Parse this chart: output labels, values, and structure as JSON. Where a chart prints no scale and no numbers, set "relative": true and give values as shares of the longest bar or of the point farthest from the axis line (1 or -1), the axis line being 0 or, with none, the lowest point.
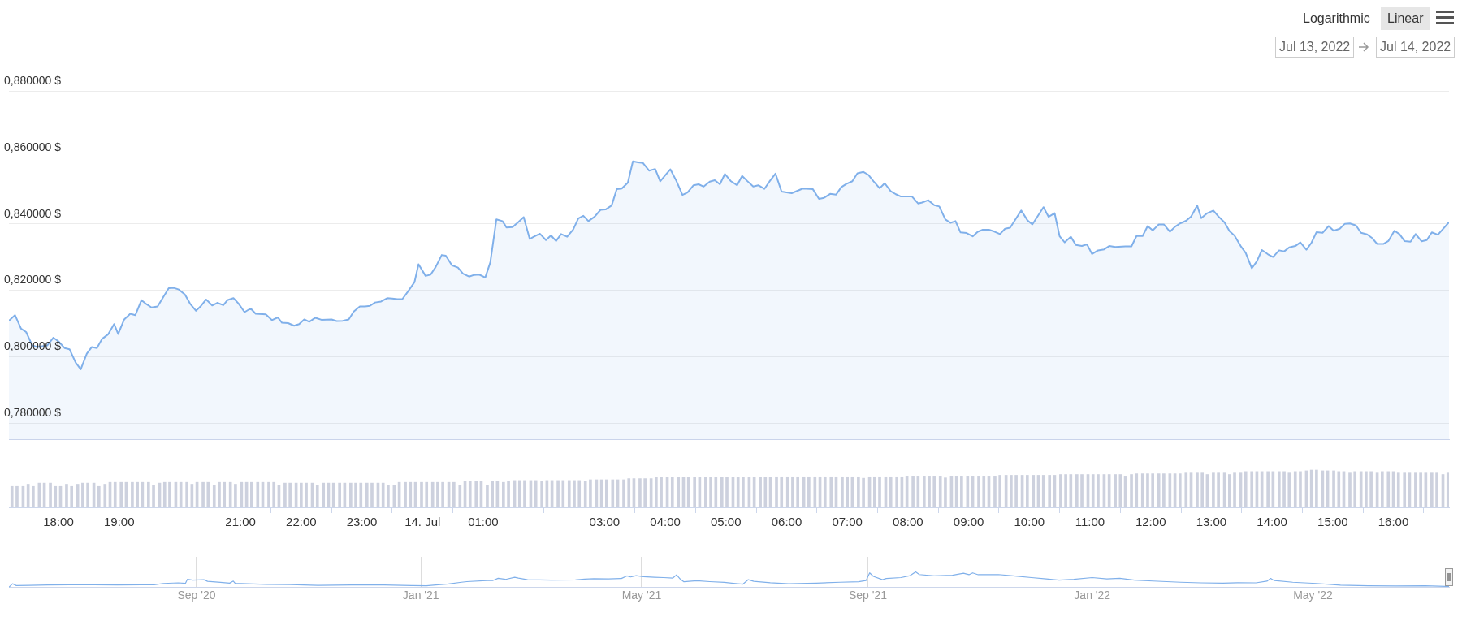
{
  "chart_data": [
    {
      "type": "area",
      "color": "#80b0ea",
      "grid": "y",
      "tick_labels": "y",
      "xlim": [
        "2022-07-13T17:11",
        "2022-07-14T16:55"
      ],
      "ylim": [
        0.775,
        0.88
      ],
      "yticks": [
        {
          "value": 0.78,
          "label": "0,780000 $"
        },
        {
          "value": 0.8,
          "label": "0,800000 $"
        },
        {
          "value": 0.82,
          "label": "0,820000 $"
        },
        {
          "value": 0.84,
          "label": "0,840000 $"
        },
        {
          "value": 0.86,
          "label": "0,860000 $"
        },
        {
          "value": 0.88,
          "label": "0,880000 $"
        }
      ],
      "annotations": [
        "Logarithmic",
        "Linear",
        "Jul 13, 2022",
        "Jul 14, 2022"
      ],
      "x": [
        "2022-07-13T17:11",
        "2022-07-13T17:17",
        "2022-07-13T17:23",
        "2022-07-13T17:28",
        "2022-07-13T17:34",
        "2022-07-13T17:39",
        "2022-07-13T17:49",
        "2022-07-13T17:55",
        "2022-07-13T18:00",
        "2022-07-13T18:06",
        "2022-07-13T18:11",
        "2022-07-13T18:17",
        "2022-07-13T18:22",
        "2022-07-13T18:28",
        "2022-07-13T18:33",
        "2022-07-13T18:38",
        "2022-07-13T18:43",
        "2022-07-13T18:49",
        "2022-07-13T18:55",
        "2022-07-13T18:59",
        "2022-07-13T19:05",
        "2022-07-13T19:11",
        "2022-07-13T19:16",
        "2022-07-13T19:22",
        "2022-07-13T19:27",
        "2022-07-13T19:32",
        "2022-07-13T19:38",
        "2022-07-13T19:43",
        "2022-07-13T19:49",
        "2022-07-13T19:54",
        "2022-07-13T19:59",
        "2022-07-13T20:05",
        "2022-07-13T20:10",
        "2022-07-13T20:16",
        "2022-07-13T20:21",
        "2022-07-13T20:26",
        "2022-07-13T20:32",
        "2022-07-13T20:37",
        "2022-07-13T20:43",
        "2022-07-13T20:47",
        "2022-07-13T20:53",
        "2022-07-13T20:58",
        "2022-07-13T21:04",
        "2022-07-13T21:10",
        "2022-07-13T21:15",
        "2022-07-13T21:25",
        "2022-07-13T21:31",
        "2022-07-13T21:37",
        "2022-07-13T21:41",
        "2022-07-13T21:47",
        "2022-07-13T21:53",
        "2022-07-13T21:58",
        "2022-07-13T22:03",
        "2022-07-13T22:08",
        "2022-07-13T22:14",
        "2022-07-13T22:20",
        "2022-07-13T22:30",
        "2022-07-13T22:35",
        "2022-07-13T22:41",
        "2022-07-13T22:47",
        "2022-07-13T22:52",
        "2022-07-13T22:58",
        "2022-07-13T23:03",
        "2022-07-13T23:08",
        "2022-07-13T23:13",
        "2022-07-13T23:19",
        "2022-07-13T23:25",
        "2022-07-13T23:30",
        "2022-07-13T23:35",
        "2022-07-13T23:40",
        "2022-07-13T23:46",
        "2022-07-13T23:52",
        "2022-07-13T23:56",
        "2022-07-14T00:03",
        "2022-07-14T00:08",
        "2022-07-14T00:13",
        "2022-07-14T00:19",
        "2022-07-14T00:23",
        "2022-07-14T00:29",
        "2022-07-14T00:35",
        "2022-07-14T00:40",
        "2022-07-14T00:46",
        "2022-07-14T00:51",
        "2022-07-14T00:56",
        "2022-07-14T01:02",
        "2022-07-14T01:07",
        "2022-07-14T01:13",
        "2022-07-14T01:19",
        "2022-07-14T01:23",
        "2022-07-14T01:29",
        "2022-07-14T01:35",
        "2022-07-14T01:40",
        "2022-07-14T01:46",
        "2022-07-14T01:50",
        "2022-07-14T01:56",
        "2022-07-14T02:02",
        "2022-07-14T02:07",
        "2022-07-14T02:12",
        "2022-07-14T02:17",
        "2022-07-14T02:23",
        "2022-07-14T02:29",
        "2022-07-14T02:34",
        "2022-07-14T02:39",
        "2022-07-14T02:44",
        "2022-07-14T02:50",
        "2022-07-14T02:56",
        "2022-07-14T03:01",
        "2022-07-14T03:07",
        "2022-07-14T03:12",
        "2022-07-14T03:17",
        "2022-07-14T03:23",
        "2022-07-14T03:28",
        "2022-07-14T03:33",
        "2022-07-14T03:38",
        "2022-07-14T03:44",
        "2022-07-14T03:50",
        "2022-07-14T03:55",
        "2022-07-14T04:00",
        "2022-07-14T04:05",
        "2022-07-14T04:11",
        "2022-07-14T04:17",
        "2022-07-14T04:22",
        "2022-07-14T04:28",
        "2022-07-14T04:33",
        "2022-07-14T04:38",
        "2022-07-14T04:44",
        "2022-07-14T04:49",
        "2022-07-14T04:54",
        "2022-07-14T04:59",
        "2022-07-14T05:05",
        "2022-07-14T05:11",
        "2022-07-14T05:16",
        "2022-07-14T05:21",
        "2022-07-14T05:27",
        "2022-07-14T05:32",
        "2022-07-14T05:38",
        "2022-07-14T05:43",
        "2022-07-14T05:49",
        "2022-07-14T05:55",
        "2022-07-14T06:05",
        "2022-07-14T06:16",
        "2022-07-14T06:26",
        "2022-07-14T06:32",
        "2022-07-14T06:37",
        "2022-07-14T06:43",
        "2022-07-14T06:49",
        "2022-07-14T06:54",
        "2022-07-14T06:59",
        "2022-07-14T07:05",
        "2022-07-14T07:10",
        "2022-07-14T07:16",
        "2022-07-14T07:21",
        "2022-07-14T07:26",
        "2022-07-14T07:32",
        "2022-07-14T07:37",
        "2022-07-14T07:43",
        "2022-07-14T07:48",
        "2022-07-14T07:53",
        "2022-07-14T08:04",
        "2022-07-14T08:10",
        "2022-07-14T08:14",
        "2022-07-14T08:20",
        "2022-07-14T08:26",
        "2022-07-14T08:31",
        "2022-07-14T08:37",
        "2022-07-14T08:42",
        "2022-07-14T08:47",
        "2022-07-14T08:52",
        "2022-07-14T08:58",
        "2022-07-14T09:04",
        "2022-07-14T09:09",
        "2022-07-14T09:14",
        "2022-07-14T09:20",
        "2022-07-14T09:25",
        "2022-07-14T09:31",
        "2022-07-14T09:36",
        "2022-07-14T09:41",
        "2022-07-14T09:52",
        "2022-07-14T09:58",
        "2022-07-14T10:03",
        "2022-07-14T10:14",
        "2022-07-14T10:19",
        "2022-07-14T10:25",
        "2022-07-14T10:30",
        "2022-07-14T10:35",
        "2022-07-14T10:41",
        "2022-07-14T10:46",
        "2022-07-14T10:52",
        "2022-07-14T10:57",
        "2022-07-14T11:02",
        "2022-07-14T11:08",
        "2022-07-14T11:14",
        "2022-07-14T11:19",
        "2022-07-14T11:25",
        "2022-07-14T11:35",
        "2022-07-14T11:41",
        "2022-07-14T11:46",
        "2022-07-14T11:52",
        "2022-07-14T11:57",
        "2022-07-14T12:02",
        "2022-07-14T12:08",
        "2022-07-14T12:13",
        "2022-07-14T12:19",
        "2022-07-14T12:24",
        "2022-07-14T12:29",
        "2022-07-14T12:35",
        "2022-07-14T12:40",
        "2022-07-14T12:46",
        "2022-07-14T12:50",
        "2022-07-14T12:56",
        "2022-07-14T13:02",
        "2022-07-14T13:07",
        "2022-07-14T13:13",
        "2022-07-14T13:18",
        "2022-07-14T13:23",
        "2022-07-14T13:29",
        "2022-07-14T13:34",
        "2022-07-14T13:40",
        "2022-07-14T13:45",
        "2022-07-14T13:50",
        "2022-07-14T13:56",
        "2022-07-14T14:01",
        "2022-07-14T14:07",
        "2022-07-14T14:12",
        "2022-07-14T14:17",
        "2022-07-14T14:23",
        "2022-07-14T14:28",
        "2022-07-14T14:34",
        "2022-07-14T14:39",
        "2022-07-14T14:44",
        "2022-07-14T14:50",
        "2022-07-14T14:56",
        "2022-07-14T15:01",
        "2022-07-14T15:07",
        "2022-07-14T15:12",
        "2022-07-14T15:17",
        "2022-07-14T15:23",
        "2022-07-14T15:28",
        "2022-07-14T15:34",
        "2022-07-14T15:39",
        "2022-07-14T15:44",
        "2022-07-14T15:50",
        "2022-07-14T15:55",
        "2022-07-14T16:01",
        "2022-07-14T16:06",
        "2022-07-14T16:11",
        "2022-07-14T16:17",
        "2022-07-14T16:22",
        "2022-07-14T16:28",
        "2022-07-14T16:33",
        "2022-07-14T16:38",
        "2022-07-14T16:44",
        "2022-07-14T16:49",
        "2022-07-14T16:55"
      ],
      "values": [
        0.8108,
        0.8125,
        0.8084,
        0.8074,
        0.8034,
        0.8029,
        0.8034,
        0.8057,
        0.8046,
        0.8026,
        0.8022,
        0.7982,
        0.7962,
        0.8009,
        0.8029,
        0.8026,
        0.8053,
        0.8067,
        0.8098,
        0.8068,
        0.8112,
        0.8129,
        0.8125,
        0.817,
        0.8158,
        0.8148,
        0.8151,
        0.8176,
        0.8206,
        0.8207,
        0.8202,
        0.8187,
        0.816,
        0.8138,
        0.8153,
        0.8172,
        0.8154,
        0.8162,
        0.8155,
        0.817,
        0.8176,
        0.816,
        0.8134,
        0.8145,
        0.8129,
        0.8127,
        0.811,
        0.8118,
        0.8102,
        0.8101,
        0.8093,
        0.8098,
        0.8112,
        0.8105,
        0.8117,
        0.8111,
        0.8112,
        0.8107,
        0.8108,
        0.8112,
        0.8136,
        0.8151,
        0.8151,
        0.8153,
        0.8163,
        0.8166,
        0.8176,
        0.8175,
        0.8173,
        0.8173,
        0.8198,
        0.8224,
        0.8278,
        0.8243,
        0.8247,
        0.827,
        0.8306,
        0.8304,
        0.8275,
        0.8268,
        0.825,
        0.8241,
        0.8246,
        0.8247,
        0.8238,
        0.8284,
        0.8413,
        0.8408,
        0.8389,
        0.839,
        0.8406,
        0.842,
        0.8354,
        0.8361,
        0.837,
        0.8351,
        0.8365,
        0.8348,
        0.8369,
        0.8361,
        0.8383,
        0.8416,
        0.8424,
        0.8408,
        0.8421,
        0.8442,
        0.8443,
        0.8455,
        0.8504,
        0.8506,
        0.8524,
        0.8588,
        0.8585,
        0.8583,
        0.856,
        0.8565,
        0.8528,
        0.8546,
        0.8564,
        0.8529,
        0.8487,
        0.8494,
        0.8516,
        0.8519,
        0.8512,
        0.8527,
        0.8531,
        0.8519,
        0.855,
        0.8528,
        0.8516,
        0.8544,
        0.8529,
        0.8512,
        0.8516,
        0.8505,
        0.8527,
        0.8551,
        0.8497,
        0.8492,
        0.8506,
        0.8504,
        0.8475,
        0.8478,
        0.849,
        0.8488,
        0.851,
        0.852,
        0.8528,
        0.8552,
        0.8556,
        0.8547,
        0.8528,
        0.8507,
        0.8522,
        0.8498,
        0.8489,
        0.8482,
        0.8482,
        0.8461,
        0.8464,
        0.8471,
        0.8456,
        0.8452,
        0.8413,
        0.8403,
        0.8408,
        0.8374,
        0.8372,
        0.8362,
        0.8376,
        0.8382,
        0.8382,
        0.8377,
        0.8369,
        0.8385,
        0.8388,
        0.844,
        0.8411,
        0.8398,
        0.845,
        0.8421,
        0.8432,
        0.8362,
        0.8344,
        0.8361,
        0.8336,
        0.8333,
        0.8338,
        0.8309,
        0.832,
        0.8323,
        0.8333,
        0.833,
        0.8332,
        0.8332,
        0.8363,
        0.8363,
        0.8393,
        0.838,
        0.8398,
        0.8398,
        0.8376,
        0.8391,
        0.8401,
        0.8409,
        0.8422,
        0.8455,
        0.8417,
        0.8432,
        0.844,
        0.8422,
        0.8404,
        0.8378,
        0.8364,
        0.8333,
        0.8312,
        0.8266,
        0.8287,
        0.8321,
        0.8308,
        0.83,
        0.832,
        0.8317,
        0.8329,
        0.8333,
        0.8344,
        0.8322,
        0.8343,
        0.8375,
        0.8373,
        0.8393,
        0.8379,
        0.8385,
        0.84,
        0.8401,
        0.8395,
        0.8373,
        0.8368,
        0.8357,
        0.8339,
        0.8339,
        0.8348,
        0.8379,
        0.8369,
        0.8348,
        0.8346,
        0.8369,
        0.8347,
        0.8351,
        0.8374,
        0.8367,
        0.8384,
        0.8405
      ]
    },
    {
      "type": "bar",
      "color": "#cdd1de",
      "relative": true,
      "tick_labels": "x",
      "xlim": [
        "2022-07-13T17:11",
        "2022-07-14T16:55"
      ],
      "xticks": [
        {
          "value": "2022-07-13T18:00",
          "label": "18:00"
        },
        {
          "value": "2022-07-13T19:00",
          "label": "19:00"
        },
        {
          "value": "2022-07-13T21:00",
          "label": "21:00"
        },
        {
          "value": "2022-07-13T22:00",
          "label": "22:00"
        },
        {
          "value": "2022-07-13T23:00",
          "label": "23:00"
        },
        {
          "value": "2022-07-14T00:00",
          "label": "14. Jul"
        },
        {
          "value": "2022-07-14T01:00",
          "label": "01:00"
        },
        {
          "value": "2022-07-14T03:00",
          "label": "03:00"
        },
        {
          "value": "2022-07-14T04:00",
          "label": "04:00"
        },
        {
          "value": "2022-07-14T05:00",
          "label": "05:00"
        },
        {
          "value": "2022-07-14T06:00",
          "label": "06:00"
        },
        {
          "value": "2022-07-14T07:00",
          "label": "07:00"
        },
        {
          "value": "2022-07-14T08:00",
          "label": "08:00"
        },
        {
          "value": "2022-07-14T09:00",
          "label": "09:00"
        },
        {
          "value": "2022-07-14T10:00",
          "label": "10:00"
        },
        {
          "value": "2022-07-14T11:00",
          "label": "11:00"
        },
        {
          "value": "2022-07-14T12:00",
          "label": "12:00"
        },
        {
          "value": "2022-07-14T13:00",
          "label": "13:00"
        },
        {
          "value": "2022-07-14T14:00",
          "label": "14:00"
        },
        {
          "value": "2022-07-14T15:00",
          "label": "15:00"
        },
        {
          "value": "2022-07-14T16:00",
          "label": "16:00"
        }
      ],
      "x": [
        "2022-07-13T17:14",
        "2022-07-13T17:19",
        "2022-07-13T17:25",
        "2022-07-13T17:30",
        "2022-07-13T17:35",
        "2022-07-13T17:41",
        "2022-07-13T17:46",
        "2022-07-13T17:52",
        "2022-07-13T17:57",
        "2022-07-13T18:02",
        "2022-07-13T18:08",
        "2022-07-13T18:13",
        "2022-07-13T18:19",
        "2022-07-13T18:24",
        "2022-07-13T18:29",
        "2022-07-13T18:35",
        "2022-07-13T18:40",
        "2022-07-13T18:46",
        "2022-07-13T18:51",
        "2022-07-13T18:56",
        "2022-07-13T19:02",
        "2022-07-13T19:07",
        "2022-07-13T19:13",
        "2022-07-13T19:18",
        "2022-07-13T19:23",
        "2022-07-13T19:29",
        "2022-07-13T19:34",
        "2022-07-13T19:40",
        "2022-07-13T19:45",
        "2022-07-13T19:50",
        "2022-07-13T19:56",
        "2022-07-13T20:01",
        "2022-07-13T20:07",
        "2022-07-13T20:12",
        "2022-07-13T20:17",
        "2022-07-13T20:23",
        "2022-07-13T20:28",
        "2022-07-13T20:34",
        "2022-07-13T20:39",
        "2022-07-13T20:44",
        "2022-07-13T20:50",
        "2022-07-13T20:55",
        "2022-07-13T21:01",
        "2022-07-13T21:06",
        "2022-07-13T21:11",
        "2022-07-13T21:17",
        "2022-07-13T21:22",
        "2022-07-13T21:28",
        "2022-07-13T21:33",
        "2022-07-13T21:38",
        "2022-07-13T21:44",
        "2022-07-13T21:49",
        "2022-07-13T21:55",
        "2022-07-13T22:00",
        "2022-07-13T22:05",
        "2022-07-13T22:11",
        "2022-07-13T22:16",
        "2022-07-13T22:22",
        "2022-07-13T22:27",
        "2022-07-13T22:32",
        "2022-07-13T22:38",
        "2022-07-13T22:43",
        "2022-07-13T22:49",
        "2022-07-13T22:54",
        "2022-07-13T22:59",
        "2022-07-13T23:05",
        "2022-07-13T23:10",
        "2022-07-13T23:16",
        "2022-07-13T23:21",
        "2022-07-13T23:26",
        "2022-07-13T23:32",
        "2022-07-13T23:37",
        "2022-07-13T23:43",
        "2022-07-13T23:48",
        "2022-07-13T23:53",
        "2022-07-13T23:59",
        "2022-07-14T00:04",
        "2022-07-14T00:10",
        "2022-07-14T00:15",
        "2022-07-14T00:20",
        "2022-07-14T00:26",
        "2022-07-14T00:31",
        "2022-07-14T00:37",
        "2022-07-14T00:42",
        "2022-07-14T00:47",
        "2022-07-14T00:53",
        "2022-07-14T00:58",
        "2022-07-14T01:04",
        "2022-07-14T01:09",
        "2022-07-14T01:14",
        "2022-07-14T01:20",
        "2022-07-14T01:25",
        "2022-07-14T01:31",
        "2022-07-14T01:36",
        "2022-07-14T01:41",
        "2022-07-14T01:47",
        "2022-07-14T01:52",
        "2022-07-14T01:58",
        "2022-07-14T02:03",
        "2022-07-14T02:08",
        "2022-07-14T02:14",
        "2022-07-14T02:19",
        "2022-07-14T02:25",
        "2022-07-14T02:30",
        "2022-07-14T02:35",
        "2022-07-14T02:41",
        "2022-07-14T02:46",
        "2022-07-14T02:52",
        "2022-07-14T02:57",
        "2022-07-14T03:02",
        "2022-07-14T03:08",
        "2022-07-14T03:13",
        "2022-07-14T03:19",
        "2022-07-14T03:24",
        "2022-07-14T03:29",
        "2022-07-14T03:35",
        "2022-07-14T03:40",
        "2022-07-14T03:46",
        "2022-07-14T03:51",
        "2022-07-14T03:56",
        "2022-07-14T04:02",
        "2022-07-14T04:07",
        "2022-07-14T04:13",
        "2022-07-14T04:18",
        "2022-07-14T04:23",
        "2022-07-14T04:29",
        "2022-07-14T04:34",
        "2022-07-14T04:40",
        "2022-07-14T04:45",
        "2022-07-14T04:50",
        "2022-07-14T04:56",
        "2022-07-14T05:01",
        "2022-07-14T05:07",
        "2022-07-14T05:12",
        "2022-07-14T05:17",
        "2022-07-14T05:23",
        "2022-07-14T05:28",
        "2022-07-14T05:34",
        "2022-07-14T05:39",
        "2022-07-14T05:44",
        "2022-07-14T05:50",
        "2022-07-14T05:55",
        "2022-07-14T06:01",
        "2022-07-14T06:06",
        "2022-07-14T06:11",
        "2022-07-14T06:17",
        "2022-07-14T06:22",
        "2022-07-14T06:28",
        "2022-07-14T06:33",
        "2022-07-14T06:38",
        "2022-07-14T06:44",
        "2022-07-14T06:49",
        "2022-07-14T06:55",
        "2022-07-14T07:00",
        "2022-07-14T07:05",
        "2022-07-14T07:11",
        "2022-07-14T07:16",
        "2022-07-14T07:22",
        "2022-07-14T07:27",
        "2022-07-14T07:32",
        "2022-07-14T07:38",
        "2022-07-14T07:43",
        "2022-07-14T07:49",
        "2022-07-14T07:54",
        "2022-07-14T07:59",
        "2022-07-14T08:05",
        "2022-07-14T08:10",
        "2022-07-14T08:16",
        "2022-07-14T08:21",
        "2022-07-14T08:26",
        "2022-07-14T08:32",
        "2022-07-14T08:37",
        "2022-07-14T08:43",
        "2022-07-14T08:48",
        "2022-07-14T08:53",
        "2022-07-14T08:59",
        "2022-07-14T09:04",
        "2022-07-14T09:10",
        "2022-07-14T09:15",
        "2022-07-14T09:20",
        "2022-07-14T09:26",
        "2022-07-14T09:31",
        "2022-07-14T09:37",
        "2022-07-14T09:42",
        "2022-07-14T09:47",
        "2022-07-14T09:53",
        "2022-07-14T09:58",
        "2022-07-14T10:04",
        "2022-07-14T10:09",
        "2022-07-14T10:14",
        "2022-07-14T10:20",
        "2022-07-14T10:25",
        "2022-07-14T10:31",
        "2022-07-14T10:36",
        "2022-07-14T10:41",
        "2022-07-14T10:47",
        "2022-07-14T10:52",
        "2022-07-14T10:58",
        "2022-07-14T11:03",
        "2022-07-14T11:08",
        "2022-07-14T11:14",
        "2022-07-14T11:19",
        "2022-07-14T11:25",
        "2022-07-14T11:30",
        "2022-07-14T11:35",
        "2022-07-14T11:41",
        "2022-07-14T11:46",
        "2022-07-14T11:52",
        "2022-07-14T11:57",
        "2022-07-14T12:02",
        "2022-07-14T12:08",
        "2022-07-14T12:13",
        "2022-07-14T12:19",
        "2022-07-14T12:24",
        "2022-07-14T12:29",
        "2022-07-14T12:35",
        "2022-07-14T12:40",
        "2022-07-14T12:46",
        "2022-07-14T12:51",
        "2022-07-14T12:56",
        "2022-07-14T13:02",
        "2022-07-14T13:07",
        "2022-07-14T13:13",
        "2022-07-14T13:18",
        "2022-07-14T13:23",
        "2022-07-14T13:29",
        "2022-07-14T13:34",
        "2022-07-14T13:40",
        "2022-07-14T13:45",
        "2022-07-14T13:50",
        "2022-07-14T13:56",
        "2022-07-14T14:01",
        "2022-07-14T14:07",
        "2022-07-14T14:12",
        "2022-07-14T14:17",
        "2022-07-14T14:23",
        "2022-07-14T14:28",
        "2022-07-14T14:34",
        "2022-07-14T14:39",
        "2022-07-14T14:44",
        "2022-07-14T14:50",
        "2022-07-14T14:55",
        "2022-07-14T15:01",
        "2022-07-14T15:06",
        "2022-07-14T15:11",
        "2022-07-14T15:17",
        "2022-07-14T15:22",
        "2022-07-14T15:28",
        "2022-07-14T15:33",
        "2022-07-14T15:38",
        "2022-07-14T15:44",
        "2022-07-14T15:49",
        "2022-07-14T15:55",
        "2022-07-14T16:00",
        "2022-07-14T16:05",
        "2022-07-14T16:11",
        "2022-07-14T16:16",
        "2022-07-14T16:22",
        "2022-07-14T16:27",
        "2022-07-14T16:32",
        "2022-07-14T16:38",
        "2022-07-14T16:43",
        "2022-07-14T16:49",
        "2022-07-14T16:54"
      ],
      "values": [
        0.56,
        0.56,
        0.56,
        0.62,
        0.56,
        0.65,
        0.65,
        0.65,
        0.56,
        0.56,
        0.62,
        0.56,
        0.62,
        0.65,
        0.65,
        0.65,
        0.56,
        0.62,
        0.67,
        0.67,
        0.67,
        0.67,
        0.67,
        0.67,
        0.67,
        0.67,
        0.6,
        0.65,
        0.67,
        0.67,
        0.67,
        0.67,
        0.67,
        0.62,
        0.67,
        0.67,
        0.67,
        0.6,
        0.67,
        0.67,
        0.67,
        0.62,
        0.67,
        0.67,
        0.67,
        0.67,
        0.67,
        0.67,
        0.67,
        0.6,
        0.65,
        0.65,
        0.65,
        0.65,
        0.65,
        0.65,
        0.6,
        0.65,
        0.65,
        0.65,
        0.65,
        0.65,
        0.65,
        0.65,
        0.65,
        0.65,
        0.65,
        0.65,
        0.65,
        0.6,
        0.6,
        0.67,
        0.67,
        0.67,
        0.67,
        0.67,
        0.67,
        0.67,
        0.67,
        0.67,
        0.67,
        0.67,
        0.6,
        0.7,
        0.7,
        0.7,
        0.7,
        0.6,
        0.7,
        0.7,
        0.67,
        0.7,
        0.72,
        0.72,
        0.72,
        0.72,
        0.72,
        0.7,
        0.72,
        0.72,
        0.72,
        0.72,
        0.72,
        0.72,
        0.72,
        0.7,
        0.74,
        0.74,
        0.74,
        0.74,
        0.74,
        0.74,
        0.74,
        0.77,
        0.77,
        0.77,
        0.77,
        0.77,
        0.8,
        0.8,
        0.8,
        0.8,
        0.8,
        0.8,
        0.8,
        0.8,
        0.8,
        0.8,
        0.8,
        0.8,
        0.8,
        0.8,
        0.8,
        0.8,
        0.8,
        0.8,
        0.8,
        0.8,
        0.8,
        0.8,
        0.82,
        0.82,
        0.82,
        0.82,
        0.82,
        0.82,
        0.82,
        0.82,
        0.82,
        0.82,
        0.82,
        0.82,
        0.82,
        0.82,
        0.82,
        0.82,
        0.78,
        0.82,
        0.82,
        0.82,
        0.82,
        0.82,
        0.82,
        0.82,
        0.84,
        0.84,
        0.84,
        0.84,
        0.84,
        0.84,
        0.84,
        0.79,
        0.84,
        0.84,
        0.84,
        0.84,
        0.84,
        0.84,
        0.84,
        0.84,
        0.84,
        0.86,
        0.86,
        0.86,
        0.86,
        0.86,
        0.86,
        0.86,
        0.86,
        0.86,
        0.86,
        0.86,
        0.88,
        0.88,
        0.88,
        0.88,
        0.88,
        0.88,
        0.88,
        0.88,
        0.88,
        0.88,
        0.88,
        0.88,
        0.84,
        0.88,
        0.9,
        0.9,
        0.9,
        0.9,
        0.9,
        0.9,
        0.9,
        0.9,
        0.9,
        0.92,
        0.92,
        0.92,
        0.92,
        0.88,
        0.92,
        0.92,
        0.92,
        0.88,
        0.92,
        0.92,
        0.96,
        0.96,
        0.96,
        0.96,
        0.96,
        0.96,
        0.96,
        0.96,
        0.92,
        0.96,
        0.96,
        0.98,
        1,
        1,
        0.98,
        0.98,
        0.98,
        0.96,
        0.96,
        0.92,
        0.96,
        0.96,
        0.96,
        0.96,
        0.92,
        0.96,
        0.96,
        0.96,
        0.92,
        0.92,
        0.92,
        0.92,
        0.92,
        0.92,
        0.92,
        0.92,
        0.88,
        0.92
      ]
    },
    {
      "type": "line",
      "color": "#80b0ea",
      "relative": true,
      "grid": "x",
      "xlim": [
        "2020-05-22",
        "2022-07-14"
      ],
      "xticks": [
        {
          "value": "2020-09-01",
          "label": "Sep '20"
        },
        {
          "value": "2021-01-01",
          "label": "Jan '21"
        },
        {
          "value": "2021-05-01",
          "label": "May '21"
        },
        {
          "value": "2021-09-01",
          "label": "Sep '21"
        },
        {
          "value": "2022-01-01",
          "label": "Jan '22"
        },
        {
          "value": "2022-05-01",
          "label": "May '22"
        }
      ],
      "x": [
        "2020-05-22",
        "2020-05-24",
        "2020-05-26",
        "2020-06-02",
        "2020-06-12",
        "2020-06-24",
        "2020-07-07",
        "2020-07-20",
        "2020-08-02",
        "2020-08-09",
        "2020-08-14",
        "2020-08-22",
        "2020-08-26",
        "2020-08-27",
        "2020-08-30",
        "2020-09-05",
        "2020-09-07",
        "2020-09-14",
        "2020-09-19",
        "2020-09-21",
        "2020-09-22",
        "2020-10-02",
        "2020-10-09",
        "2020-10-22",
        "2020-11-06",
        "2020-11-24",
        "2020-12-12",
        "2020-12-27",
        "2021-01-04",
        "2021-01-09",
        "2021-01-16",
        "2021-01-23",
        "2021-01-26",
        "2021-02-06",
        "2021-02-09",
        "2021-02-12",
        "2021-02-16",
        "2021-02-21",
        "2021-02-23",
        "2021-02-28",
        "2021-03-13",
        "2021-03-26",
        "2021-03-31",
        "2021-04-05",
        "2021-04-13",
        "2021-04-20",
        "2021-04-23",
        "2021-04-25",
        "2021-04-28",
        "2021-05-02",
        "2021-05-08",
        "2021-05-13",
        "2021-05-18",
        "2021-05-20",
        "2021-05-22",
        "2021-05-24",
        "2021-05-31",
        "2021-06-07",
        "2021-06-15",
        "2021-06-20",
        "2021-06-25",
        "2021-06-28",
        "2021-07-01",
        "2021-07-10",
        "2021-07-20",
        "2021-08-04",
        "2021-08-17",
        "2021-08-27",
        "2021-08-31",
        "2021-09-02",
        "2021-09-04",
        "2021-09-09",
        "2021-09-11",
        "2021-09-19",
        "2021-09-24",
        "2021-09-27",
        "2021-09-29",
        "2021-10-07",
        "2021-10-17",
        "2021-10-23",
        "2021-10-26",
        "2021-10-28",
        "2021-10-31",
        "2021-11-11",
        "2021-11-19",
        "2021-11-29",
        "2021-12-07",
        "2021-12-14",
        "2021-12-22",
        "2022-01-01",
        "2022-01-09",
        "2022-01-16",
        "2022-01-24",
        "2022-02-03",
        "2022-02-18",
        "2022-03-01",
        "2022-03-13",
        "2022-03-21",
        "2022-03-31",
        "2022-04-06",
        "2022-04-08",
        "2022-04-10",
        "2022-04-20",
        "2022-05-03",
        "2022-05-16",
        "2022-05-31",
        "2022-06-15",
        "2022-07-01",
        "2022-07-14"
      ],
      "values": [
        0,
        0.22,
        0.1,
        0.11,
        0.14,
        0.15,
        0.15,
        0.14,
        0.15,
        0.15,
        0.24,
        0.28,
        0.25,
        0.51,
        0.46,
        0.49,
        0.38,
        0.31,
        0.26,
        0.4,
        0.25,
        0.21,
        0.18,
        0.17,
        0.11,
        0.14,
        0.14,
        0.1,
        0.08,
        0.14,
        0.21,
        0.32,
        0.36,
        0.43,
        0.43,
        0.58,
        0.51,
        0.65,
        0.6,
        0.49,
        0.46,
        0.47,
        0.53,
        0.56,
        0.54,
        0.57,
        0.74,
        0.67,
        0.76,
        0.69,
        0.65,
        0.63,
        0.6,
        0.81,
        0.53,
        0.35,
        0.42,
        0.36,
        0.31,
        0.25,
        0.19,
        0.49,
        0.38,
        0.29,
        0.22,
        0.26,
        0.32,
        0.35,
        0.43,
        0.94,
        0.71,
        0.49,
        0.57,
        0.63,
        0.76,
        1,
        0.83,
        0.74,
        0.78,
        0.92,
        0.82,
        0.94,
        0.82,
        0.83,
        0.74,
        0.63,
        0.54,
        0.46,
        0.51,
        0.63,
        0.54,
        0.58,
        0.46,
        0.4,
        0.32,
        0.28,
        0.26,
        0.29,
        0.28,
        0.39,
        0.57,
        0.43,
        0.32,
        0.24,
        0.13,
        0.08,
        0.07,
        0.08,
        0.04
      ]
    }
  ]
}
